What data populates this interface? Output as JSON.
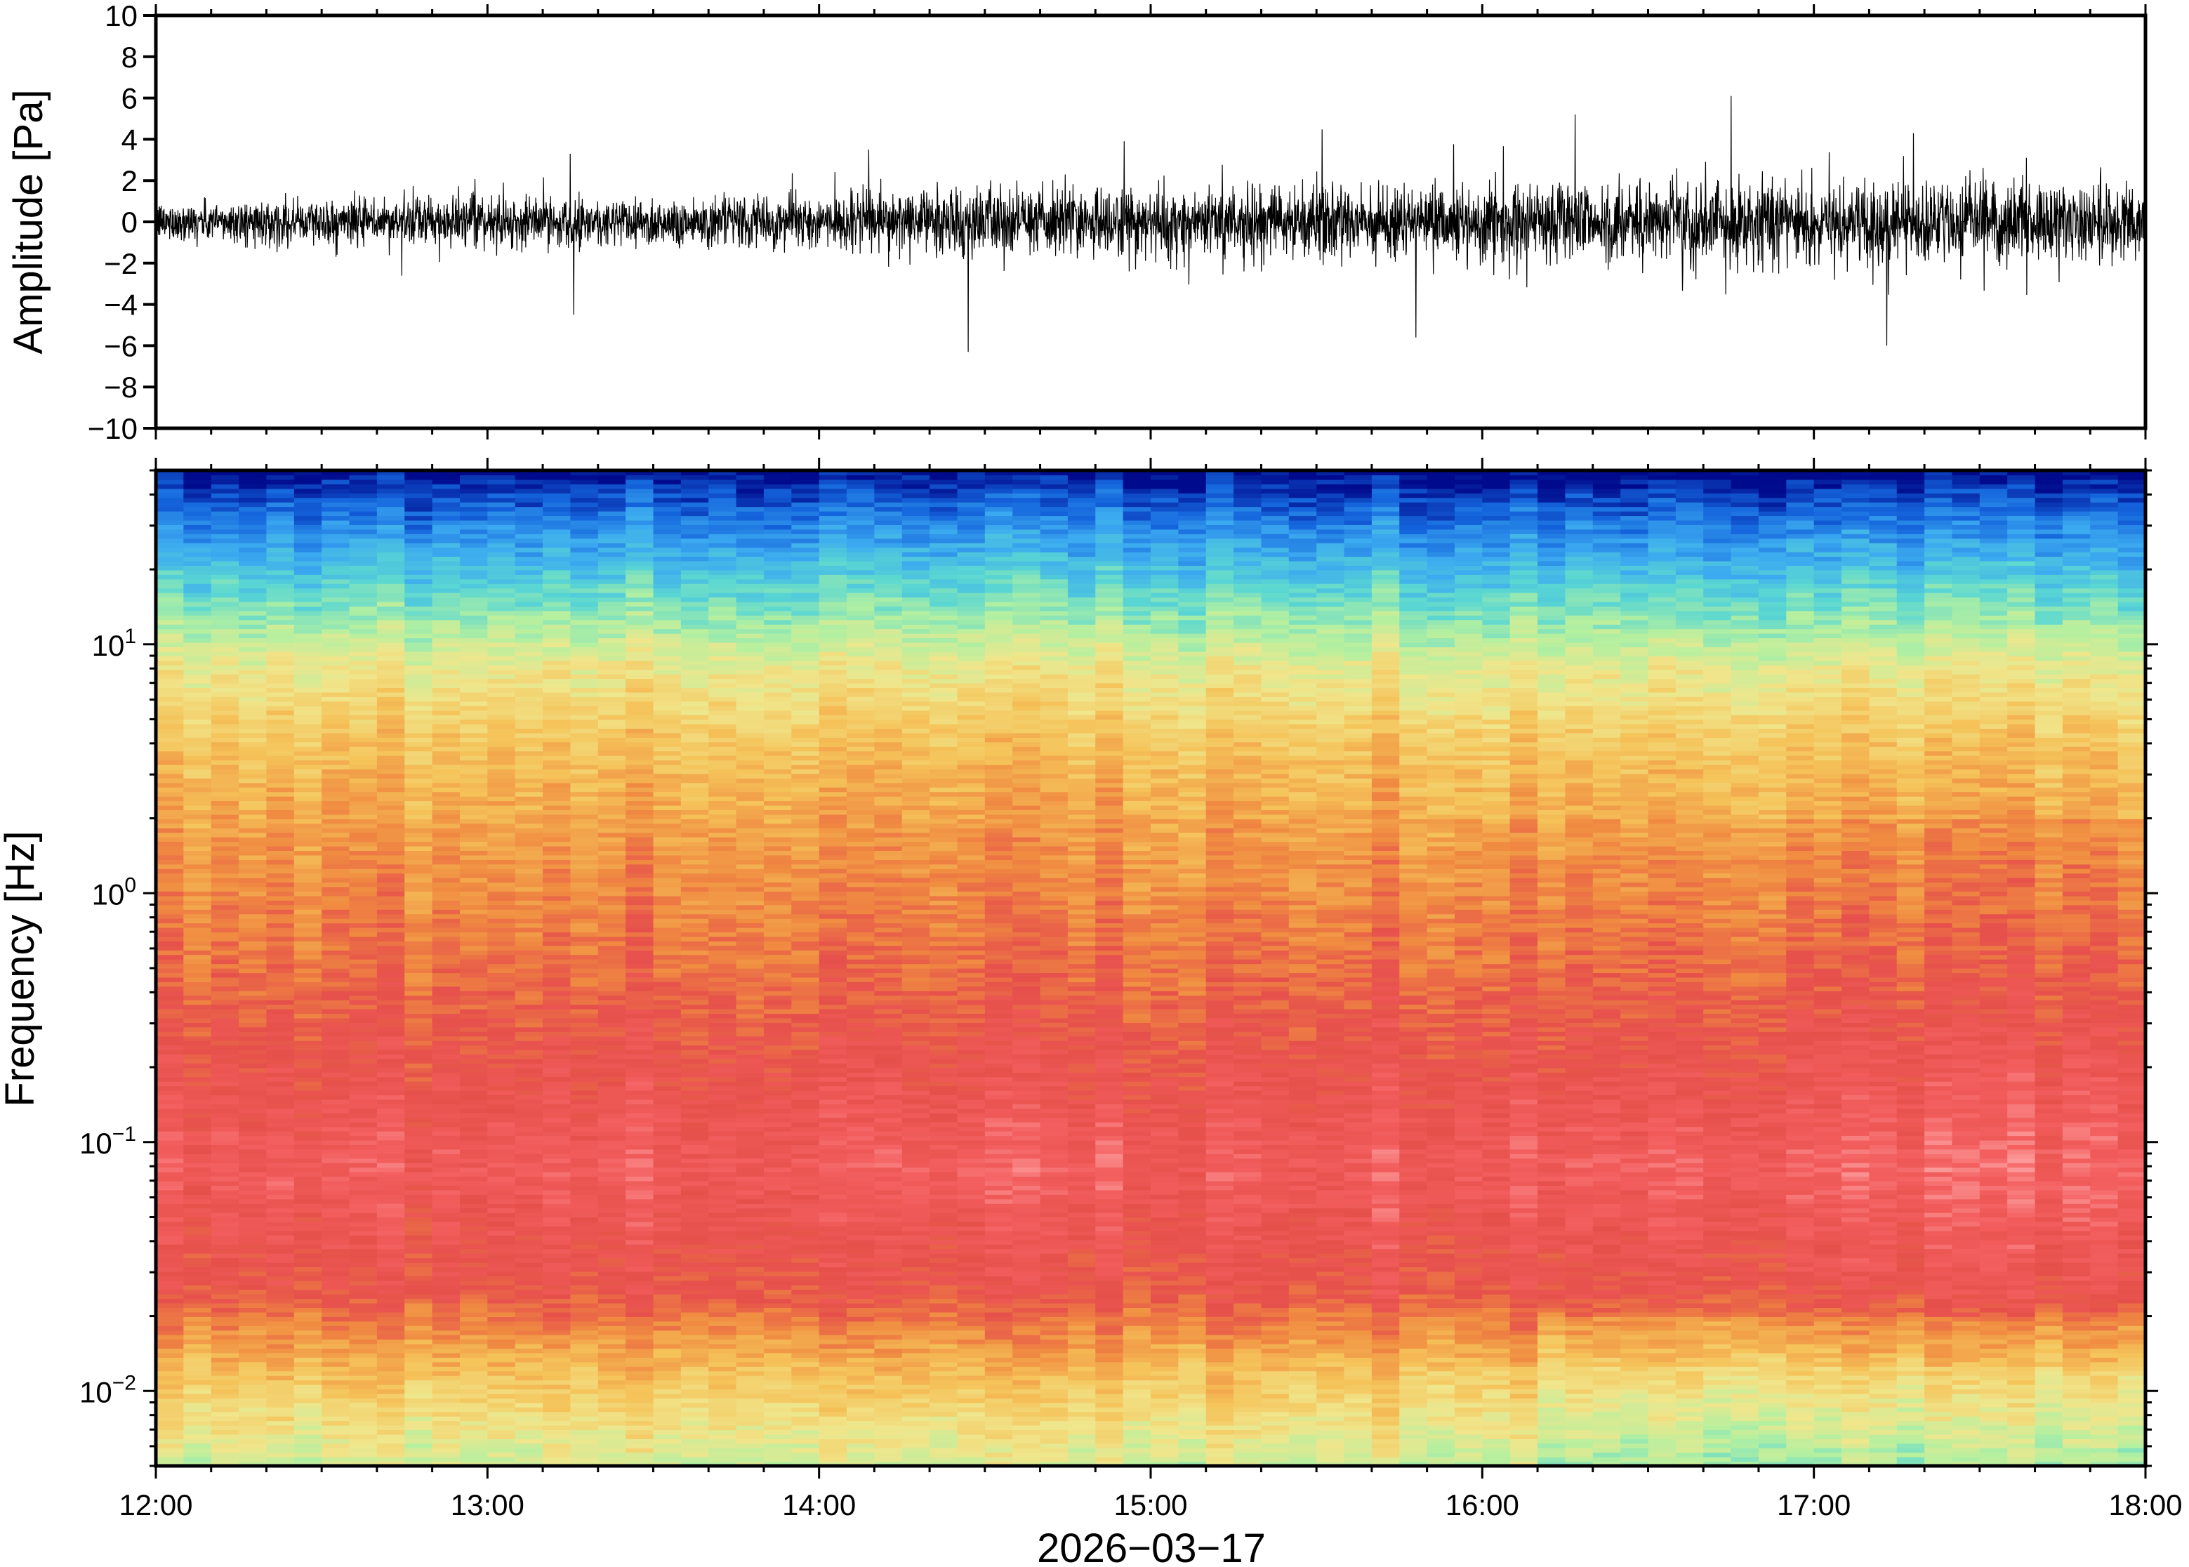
{
  "chart_data": [
    {
      "type": "line",
      "ylabel": "Amplitude [Pa]",
      "ylim": [
        -10,
        10
      ],
      "yticks": [
        10,
        8,
        6,
        4,
        2,
        0,
        -2,
        -4,
        -6,
        -8,
        -10
      ],
      "ytick_labels": [
        "10",
        "8",
        "6",
        "4",
        "2",
        "0",
        "−2",
        "−4",
        "−6",
        "−8",
        "−10"
      ],
      "xlim_hours": [
        12,
        18
      ],
      "series_color": "#000000",
      "noise_envelope": {
        "hours": [
          12.0,
          12.5,
          13.0,
          13.5,
          14.0,
          14.3,
          14.5,
          15.0,
          15.5,
          16.0,
          16.5,
          17.0,
          17.5,
          18.0
        ],
        "std_pa": [
          0.45,
          0.55,
          0.6,
          0.6,
          0.6,
          0.8,
          0.8,
          0.85,
          0.85,
          0.9,
          1.0,
          1.0,
          0.95,
          0.95
        ]
      },
      "notable_peaks": [
        {
          "hour": 13.25,
          "value": 3.3
        },
        {
          "hour": 13.26,
          "value": -4.5
        },
        {
          "hour": 14.15,
          "value": 3.5
        },
        {
          "hour": 14.45,
          "value": -6.3
        },
        {
          "hour": 14.92,
          "value": 3.9
        },
        {
          "hour": 15.8,
          "value": -5.6
        },
        {
          "hour": 16.28,
          "value": 5.2
        },
        {
          "hour": 16.75,
          "value": 6.1
        },
        {
          "hour": 17.22,
          "value": -6.0
        },
        {
          "hour": 17.3,
          "value": 4.3
        }
      ]
    },
    {
      "type": "heatmap",
      "ylabel": "Frequency [Hz]",
      "xlabel": "2026−03−17",
      "yscale": "log",
      "ylim_hz": [
        0.005,
        50
      ],
      "yticks_hz": [
        10,
        1,
        0.1,
        0.01
      ],
      "ytick_labels": [
        {
          "base": "10",
          "exp": "1"
        },
        {
          "base": "10",
          "exp": "0"
        },
        {
          "base": "10",
          "exp": "−1"
        },
        {
          "base": "10",
          "exp": "−2"
        }
      ],
      "xticks_hours": [
        12,
        13,
        14,
        15,
        16,
        17,
        18
      ],
      "xtick_labels": [
        "12:00",
        "13:00",
        "14:00",
        "15:00",
        "16:00",
        "17:00",
        "18:00"
      ],
      "colormap": [
        "#000a8c",
        "#1464dc",
        "#3caaf0",
        "#5ad7d2",
        "#b4f0a0",
        "#f0e68c",
        "#f5c35a",
        "#f08c41",
        "#e6504b",
        "#f46060",
        "#ffb4b4"
      ],
      "log10_frequency_levels": [
        1.7,
        1.6,
        1.4,
        1.1,
        0.9,
        0.6,
        0.2,
        -0.3,
        -0.7,
        -1.1,
        -1.6,
        -1.9,
        -2.3
      ],
      "relative_power_levels": [
        0.0,
        0.08,
        0.2,
        0.38,
        0.5,
        0.6,
        0.68,
        0.75,
        0.82,
        0.88,
        0.8,
        0.62,
        0.45
      ]
    }
  ]
}
